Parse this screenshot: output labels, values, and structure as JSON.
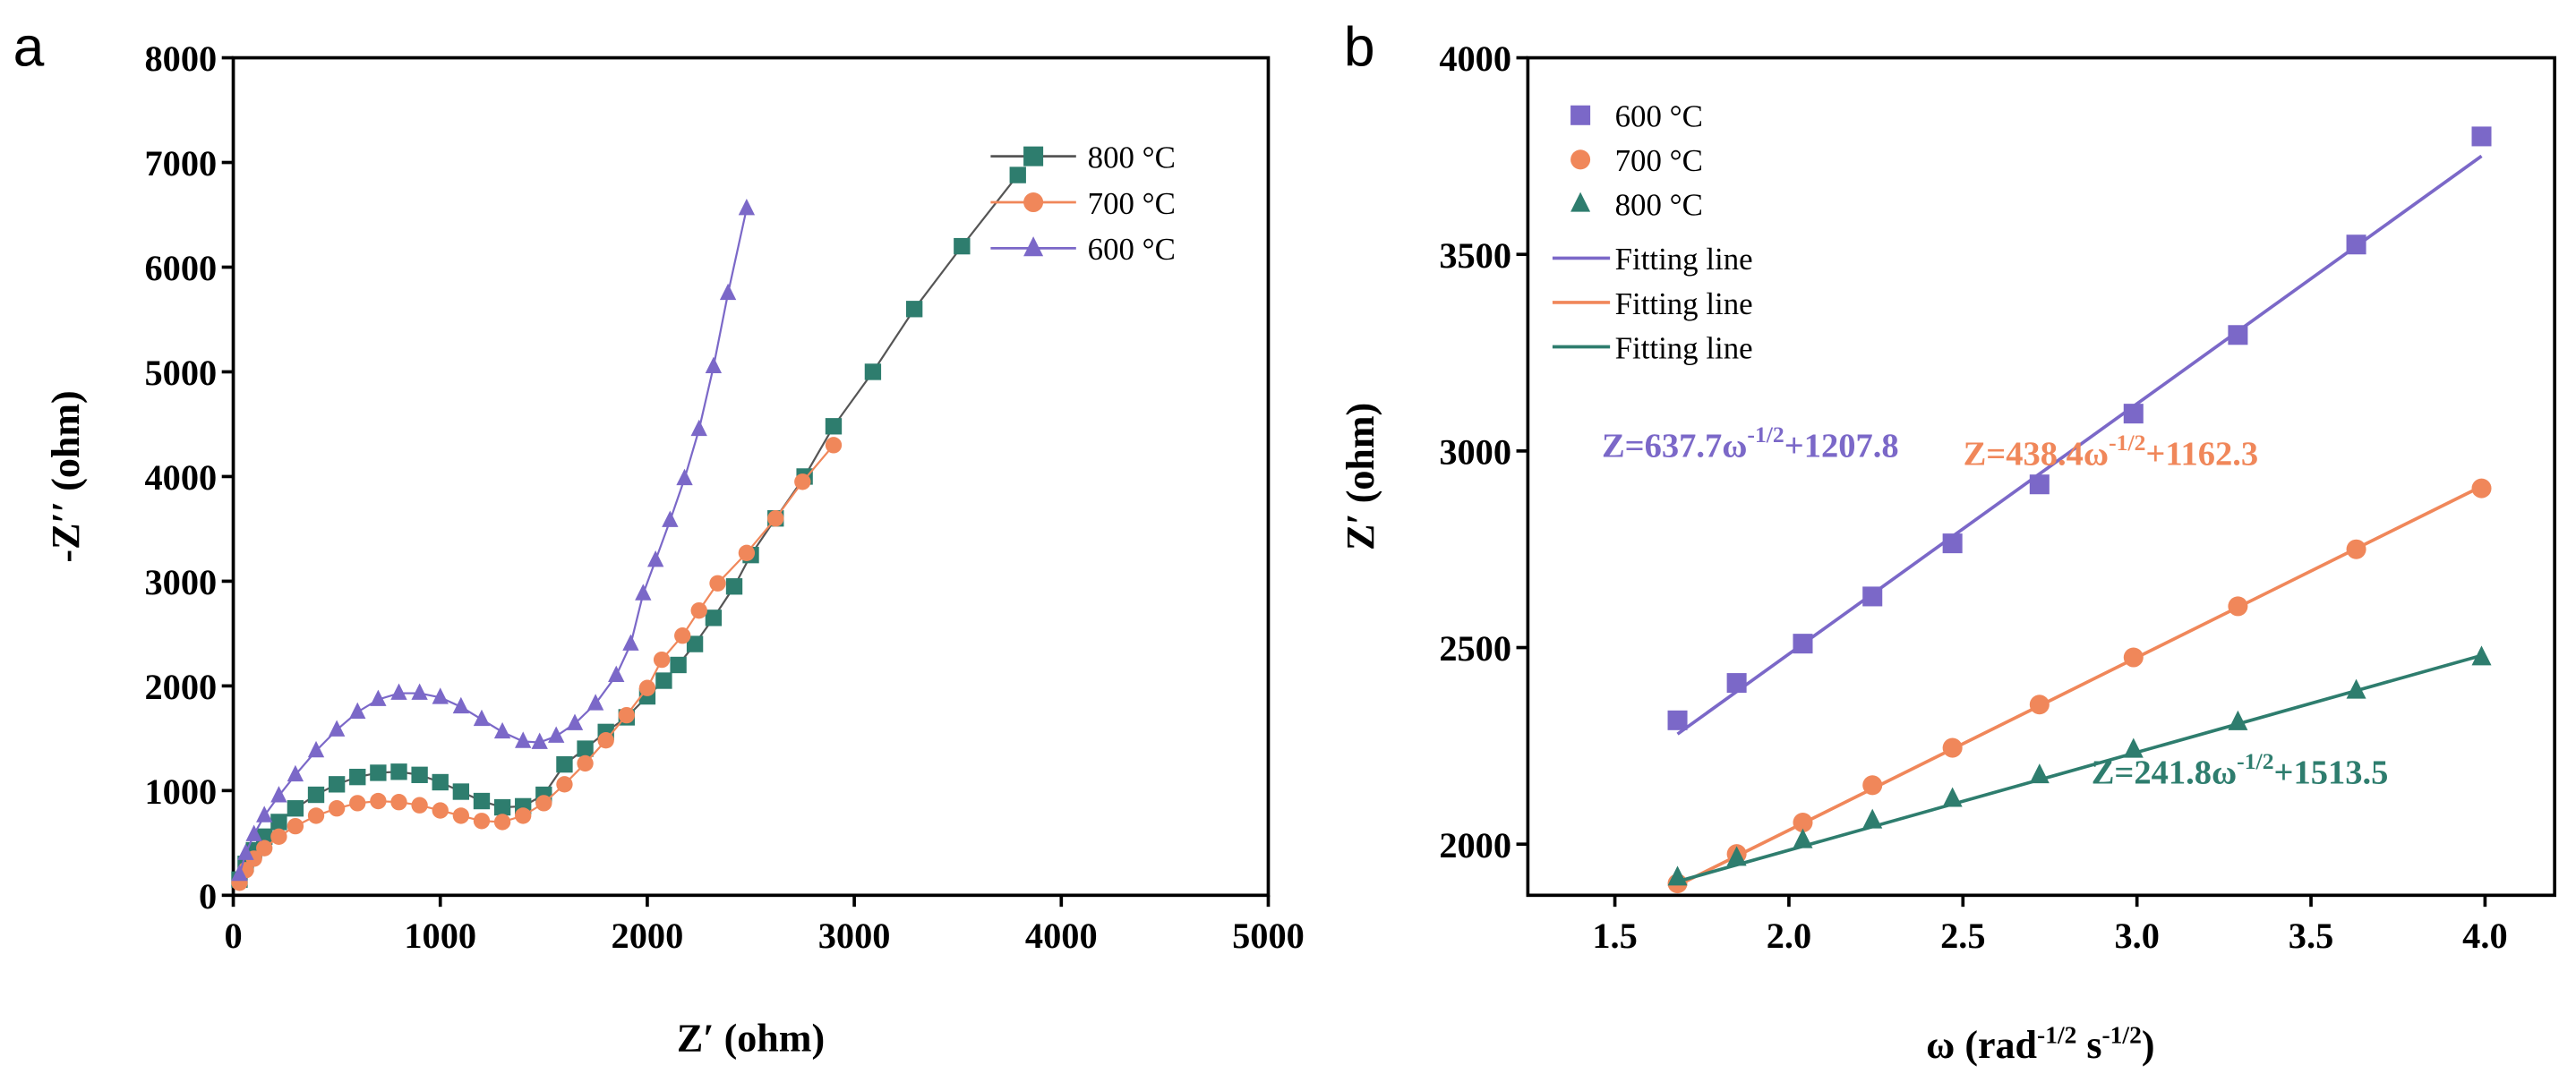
{
  "chart_data": [
    {
      "panel_label": "a",
      "type": "scatter",
      "xlabel": "Z′ (ohm)",
      "ylabel": "-Z′′ (ohm)",
      "xlim": [
        0,
        5000
      ],
      "ylim": [
        0,
        8000
      ],
      "xticks": [
        "0",
        "1000",
        "2000",
        "3000",
        "4000",
        "5000"
      ],
      "yticks": [
        "0",
        "1000",
        "2000",
        "3000",
        "4000",
        "5000",
        "6000",
        "7000",
        "8000"
      ],
      "legend_position": "top-right",
      "series": [
        {
          "name": "800 °C",
          "color": "#2e7d6e",
          "line": "#555555",
          "marker": "square",
          "points": [
            [
              30,
              150
            ],
            [
              60,
              300
            ],
            [
              100,
              430
            ],
            [
              150,
              560
            ],
            [
              220,
              700
            ],
            [
              300,
              830
            ],
            [
              400,
              960
            ],
            [
              500,
              1060
            ],
            [
              600,
              1130
            ],
            [
              700,
              1170
            ],
            [
              800,
              1180
            ],
            [
              900,
              1150
            ],
            [
              1000,
              1080
            ],
            [
              1100,
              990
            ],
            [
              1200,
              900
            ],
            [
              1300,
              840
            ],
            [
              1400,
              850
            ],
            [
              1500,
              960
            ],
            [
              1600,
              1250
            ],
            [
              1700,
              1400
            ],
            [
              1800,
              1560
            ],
            [
              1900,
              1700
            ],
            [
              2000,
              1900
            ],
            [
              2080,
              2050
            ],
            [
              2150,
              2200
            ],
            [
              2230,
              2400
            ],
            [
              2320,
              2650
            ],
            [
              2420,
              2950
            ],
            [
              2500,
              3250
            ],
            [
              2620,
              3600
            ],
            [
              2760,
              4000
            ],
            [
              2900,
              4480
            ],
            [
              3090,
              5000
            ],
            [
              3290,
              5600
            ],
            [
              3520,
              6200
            ],
            [
              3790,
              6880
            ]
          ]
        },
        {
          "name": "700 °C",
          "color": "#f0875a",
          "line": "#f0875a",
          "marker": "circle",
          "points": [
            [
              30,
              120
            ],
            [
              60,
              240
            ],
            [
              100,
              350
            ],
            [
              150,
              450
            ],
            [
              220,
              560
            ],
            [
              300,
              660
            ],
            [
              400,
              760
            ],
            [
              500,
              830
            ],
            [
              600,
              880
            ],
            [
              700,
              900
            ],
            [
              800,
              890
            ],
            [
              900,
              860
            ],
            [
              1000,
              810
            ],
            [
              1100,
              760
            ],
            [
              1200,
              710
            ],
            [
              1300,
              700
            ],
            [
              1400,
              760
            ],
            [
              1500,
              880
            ],
            [
              1600,
              1060
            ],
            [
              1700,
              1260
            ],
            [
              1800,
              1480
            ],
            [
              1900,
              1720
            ],
            [
              2000,
              1980
            ],
            [
              2070,
              2250
            ],
            [
              2170,
              2480
            ],
            [
              2250,
              2720
            ],
            [
              2340,
              2980
            ],
            [
              2480,
              3270
            ],
            [
              2620,
              3600
            ],
            [
              2750,
              3950
            ],
            [
              2900,
              4300
            ]
          ]
        },
        {
          "name": "600 °C",
          "color": "#7b68c8",
          "line": "#7b68c8",
          "marker": "triangle",
          "points": [
            [
              30,
              200
            ],
            [
              60,
              400
            ],
            [
              100,
              580
            ],
            [
              150,
              760
            ],
            [
              220,
              950
            ],
            [
              300,
              1150
            ],
            [
              400,
              1380
            ],
            [
              500,
              1580
            ],
            [
              600,
              1750
            ],
            [
              700,
              1870
            ],
            [
              800,
              1930
            ],
            [
              900,
              1930
            ],
            [
              1000,
              1890
            ],
            [
              1100,
              1800
            ],
            [
              1200,
              1680
            ],
            [
              1300,
              1560
            ],
            [
              1400,
              1470
            ],
            [
              1480,
              1460
            ],
            [
              1560,
              1520
            ],
            [
              1650,
              1640
            ],
            [
              1750,
              1830
            ],
            [
              1850,
              2100
            ],
            [
              1920,
              2400
            ],
            [
              1980,
              2880
            ],
            [
              2040,
              3200
            ],
            [
              2110,
              3580
            ],
            [
              2180,
              3980
            ],
            [
              2250,
              4450
            ],
            [
              2320,
              5050
            ],
            [
              2390,
              5750
            ],
            [
              2480,
              6560
            ]
          ]
        }
      ]
    },
    {
      "panel_label": "b",
      "type": "scatter",
      "xlabel": "ω (rad",
      "xlabel_sup1": "-1/2",
      "xlabel_mid": " s",
      "xlabel_sup2": "-1/2",
      "xlabel_end": ")",
      "ylabel": "Z′ (ohm)",
      "xlim": [
        1.25,
        4.2
      ],
      "ylim": [
        1870,
        4000
      ],
      "xticks": [
        "1.5",
        "2.0",
        "2.5",
        "3.0",
        "3.5",
        "4.0"
      ],
      "yticks": [
        "2000",
        "2500",
        "3000",
        "3500",
        "4000"
      ],
      "legend_position": "top-left",
      "x": [
        1.68,
        1.85,
        2.04,
        2.24,
        2.47,
        2.72,
        2.99,
        3.29,
        3.63,
        3.99
      ],
      "series": [
        {
          "name": "600 °C",
          "color": "#7b68c8",
          "marker": "square",
          "values": [
            2315,
            2410,
            2510,
            2630,
            2765,
            2915,
            3095,
            3295,
            3525,
            3800
          ],
          "fit": {
            "label": "Fitting line",
            "x": [
              1.68,
              3.99
            ],
            "y": [
              2280,
              3750
            ]
          },
          "equation": {
            "pre": "Z=637.7ω",
            "sup": "-1/2",
            "post": "+1207.8"
          }
        },
        {
          "name": "700 °C",
          "color": "#f0875a",
          "marker": "circle",
          "values": [
            1900,
            1975,
            2055,
            2150,
            2245,
            2355,
            2475,
            2605,
            2750,
            2905
          ],
          "fit": {
            "label": "Fitting line",
            "x": [
              1.68,
              3.99
            ],
            "y": [
              1895,
              2910
            ]
          },
          "equation": {
            "pre": "Z=438.4ω",
            "sup": "-1/2",
            "post": "+1162.3"
          }
        },
        {
          "name": "800 °C",
          "color": "#2e7d6e",
          "marker": "triangle",
          "values": [
            1915,
            1965,
            2010,
            2060,
            2115,
            2175,
            2240,
            2310,
            2390,
            2475
          ],
          "fit": {
            "label": "Fitting line",
            "x": [
              1.68,
              3.99
            ],
            "y": [
              1905,
              2480
            ]
          },
          "equation": {
            "pre": "Z=241.8ω",
            "sup": "-1/2",
            "post": "+1513.5"
          }
        }
      ]
    }
  ]
}
